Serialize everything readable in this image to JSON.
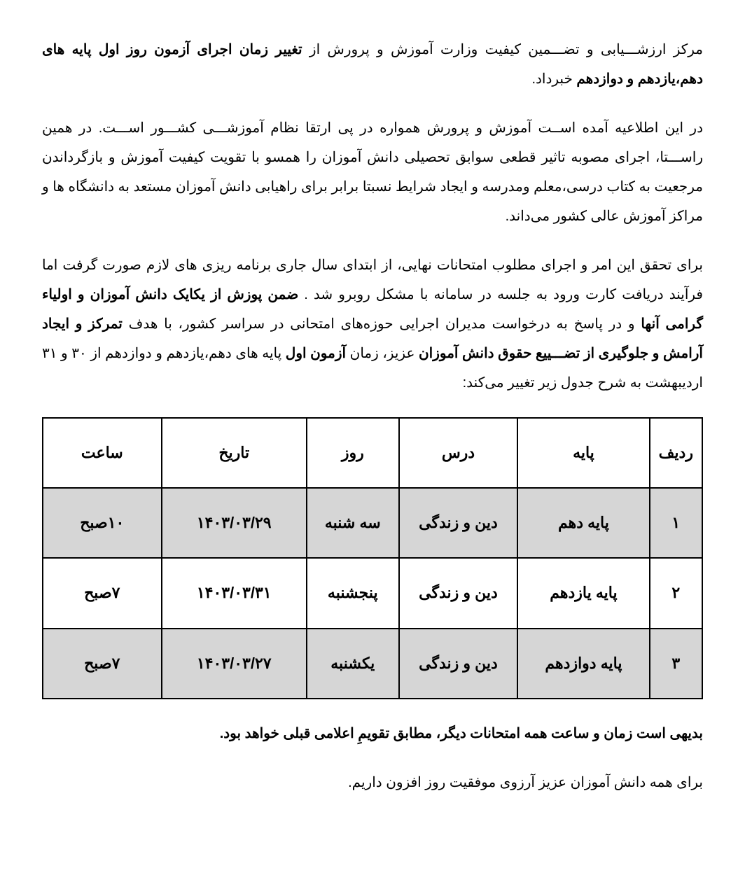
{
  "para1": {
    "t1": "مرکز ارزشـــیابی و تضـــمین کیفیت وزارت آموزش و پرورش از ",
    "b1": "تغییر زمان اجرای آزمون روز اول پایه های دهم،یازدهم و دوازدهم",
    "t2": " خبرداد."
  },
  "para2": "در این اطلاعیه آمده اســت آموزش و پرورش همواره در پی ارتقا  نظام آموزشـــی کشـــور اســـت. در همین راســـتا، اجرای مصوبه تاثیر قطعی سوابق تحصیلی دانش آموزان را همسو با تقویت کیفیت آموزش و بازگرداندن مرجعیت به کتاب درسی،معلم ومدرسه و ایجاد شرایط نسبتا برابر برای راهیابی دانش آموزان مستعد به دانشگاه ها و مراکز آموزش عالی کشور می‌داند.",
  "para3": {
    "t1": "برای تحقق این امر و اجرای مطلوب امتحانات نهایی، از ابتدای  سال جاری برنامه ریزی های لازم  صورت گرفت اما فرآیند دریافت کارت ورود به جلسه در سامانه با مشکل روبرو شد . ",
    "b1": "ضمن پوزش از یکایک دانش آموزان و اولیاء گرامی آنها",
    "t2": " و در پاسخ به درخواست مدیران اجرایی حوزه‌های امتحانی در سراسر کشور، با هدف ",
    "b2": "تمرکز و ایجاد آرامش و جلوگیری از تضـــییع حقوق دانش آموزان",
    "t3": " عزیز، زمان ",
    "b3": "آزمون  اول",
    "t4": " پایه های دهم،یازدهم و دوازدهم از ۳۰ و ۳۱ اردیبهشت به شرح جدول زیر تغییر می‌کند:"
  },
  "table": {
    "headers": {
      "row": "ردیف",
      "grade": "پایه",
      "subject": "درس",
      "day": "روز",
      "date": "تاریخ",
      "time": "ساعت"
    },
    "rows": [
      {
        "n": "۱",
        "grade": "پایه دهم",
        "subject": "دین و زندگی",
        "day": "سه شنبه",
        "date": "۱۴۰۳/۰۳/۲۹",
        "time": "۱۰صبح"
      },
      {
        "n": "۲",
        "grade": "پایه یازدهم",
        "subject": "دین و زندگی",
        "day": "پنجشنبه",
        "date": "۱۴۰۳/۰۳/۳۱",
        "time": "۷صبح"
      },
      {
        "n": "۳",
        "grade": "پایه دوازدهم",
        "subject": "دین و زندگی",
        "day": "یکشنبه",
        "date": "۱۴۰۳/۰۳/۲۷",
        "time": "۷صبح"
      }
    ]
  },
  "footer1": "بدیهی است زمان و ساعت همه امتحانات دیگر، مطابق تقویمِ اعلامی قبلی خواهد بود.",
  "footer2": "برای همه دانش آموزان عزیز آرزوی موفقیت روز افزون داریم."
}
